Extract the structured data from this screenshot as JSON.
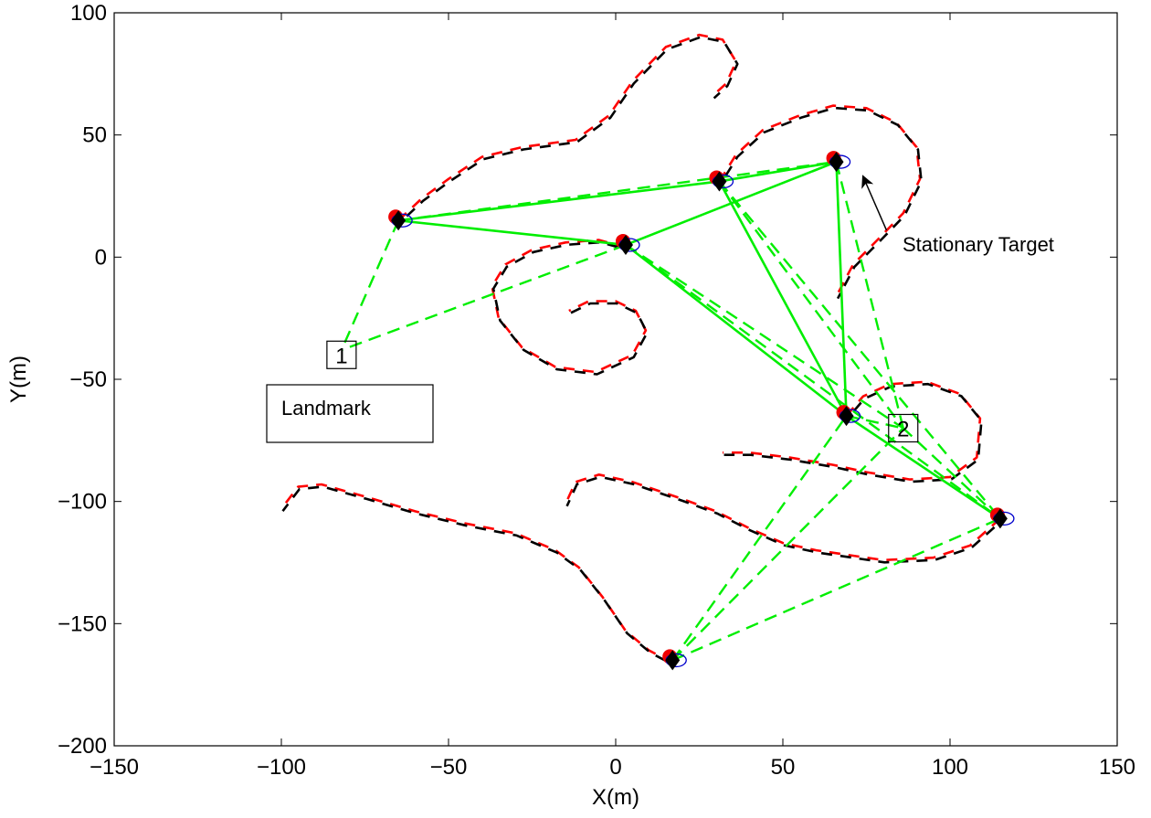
{
  "chart_data": {
    "type": "line",
    "title": "",
    "xlabel": "X(m)",
    "ylabel": "Y(m)",
    "xlim": [
      -150,
      150
    ],
    "ylim": [
      -200,
      100
    ],
    "xticks": [
      -150,
      -100,
      -50,
      0,
      50,
      100,
      150
    ],
    "yticks": [
      -200,
      -150,
      -100,
      -50,
      0,
      50,
      100
    ],
    "xtick_labels": [
      "−150",
      "−100",
      "−50",
      "0",
      "50",
      "100",
      "150"
    ],
    "ytick_labels": [
      "−200",
      "−150",
      "−100",
      "−50",
      "0",
      "50",
      "100"
    ],
    "grid": false,
    "colors": {
      "estimate_dash": "#ff0000",
      "truth_dash": "#000000",
      "link": "#00ee00",
      "uncertainty": "#0000cc"
    },
    "trajectories": [
      {
        "points": [
          [
            -65,
            15
          ],
          [
            -58,
            24
          ],
          [
            -50,
            32
          ],
          [
            -40,
            41
          ],
          [
            -28,
            45
          ],
          [
            -12,
            48
          ],
          [
            -2,
            58
          ],
          [
            5,
            72
          ],
          [
            15,
            86
          ],
          [
            25,
            91
          ],
          [
            32,
            89
          ],
          [
            36,
            80
          ],
          [
            33,
            71
          ],
          [
            29,
            66
          ]
        ]
      },
      {
        "points": [
          [
            3,
            4
          ],
          [
            -5,
            7
          ],
          [
            -15,
            6
          ],
          [
            -25,
            3
          ],
          [
            -33,
            -3
          ],
          [
            -37,
            -12
          ],
          [
            -35,
            -25
          ],
          [
            -28,
            -37
          ],
          [
            -18,
            -45
          ],
          [
            -6,
            -47
          ],
          [
            5,
            -40
          ],
          [
            9,
            -30
          ],
          [
            6,
            -22
          ],
          [
            0,
            -18
          ],
          [
            -8,
            -18
          ],
          [
            -14,
            -22
          ]
        ]
      },
      {
        "points": [
          [
            31,
            31
          ],
          [
            36,
            42
          ],
          [
            44,
            52
          ],
          [
            55,
            58
          ],
          [
            65,
            62
          ],
          [
            75,
            61
          ],
          [
            84,
            55
          ],
          [
            90,
            45
          ],
          [
            91,
            32
          ],
          [
            86,
            18
          ],
          [
            79,
            8
          ],
          [
            71,
            -3
          ],
          [
            66,
            -16
          ]
        ]
      },
      {
        "points": [
          [
            69,
            -65
          ],
          [
            74,
            -57
          ],
          [
            82,
            -52
          ],
          [
            93,
            -51
          ],
          [
            103,
            -56
          ],
          [
            109,
            -66
          ],
          [
            108,
            -82
          ],
          [
            100,
            -90
          ],
          [
            88,
            -91
          ],
          [
            75,
            -88
          ],
          [
            65,
            -85
          ],
          [
            52,
            -82
          ],
          [
            40,
            -80
          ],
          [
            32,
            -80
          ]
        ]
      },
      {
        "points": [
          [
            115,
            -107
          ],
          [
            106,
            -118
          ],
          [
            95,
            -123
          ],
          [
            80,
            -124
          ],
          [
            60,
            -120
          ],
          [
            50,
            -117
          ],
          [
            40,
            -111
          ],
          [
            30,
            -104
          ],
          [
            20,
            -99
          ],
          [
            5,
            -92
          ],
          [
            -5,
            -89
          ],
          [
            -12,
            -92
          ],
          [
            -15,
            -101
          ]
        ]
      },
      {
        "points": [
          [
            17,
            -166
          ],
          [
            10,
            -161
          ],
          [
            3,
            -153
          ],
          [
            -4,
            -139
          ],
          [
            -11,
            -127
          ],
          [
            -18,
            -120
          ],
          [
            -30,
            -113
          ],
          [
            -45,
            -109
          ],
          [
            -60,
            -104
          ],
          [
            -75,
            -98
          ],
          [
            -88,
            -93
          ],
          [
            -95,
            -94
          ],
          [
            -100,
            -103
          ]
        ]
      }
    ],
    "robots": [
      {
        "x": -65,
        "y": 15
      },
      {
        "x": 3,
        "y": 5
      },
      {
        "x": 31,
        "y": 31
      },
      {
        "x": 66,
        "y": 39
      },
      {
        "x": 69,
        "y": -65
      },
      {
        "x": 115,
        "y": -107
      },
      {
        "x": 17,
        "y": -165
      }
    ],
    "solid_links": [
      [
        0,
        2
      ],
      [
        0,
        1
      ],
      [
        2,
        3
      ],
      [
        1,
        3
      ],
      [
        2,
        4
      ],
      [
        3,
        4
      ],
      [
        1,
        4
      ],
      [
        4,
        5
      ]
    ],
    "dashed_links": [
      {
        "from": 0,
        "to": [
          -82,
          -38
        ]
      },
      {
        "from": 1,
        "to": [
          -82,
          -38
        ]
      },
      {
        "from": 0,
        "to": [
          66,
          39
        ]
      },
      {
        "from": 1,
        "to": [
          86,
          -70
        ]
      },
      {
        "from": 2,
        "to": [
          86,
          -70
        ]
      },
      {
        "from": 3,
        "to": [
          86,
          -70
        ]
      },
      {
        "from": 4,
        "to": [
          86,
          -70
        ]
      },
      {
        "from": 5,
        "to": [
          86,
          -70
        ]
      },
      {
        "from": 6,
        "to": [
          86,
          -70
        ]
      },
      {
        "from": 6,
        "to": [
          69,
          -65
        ]
      },
      {
        "from": 6,
        "to": [
          115,
          -107
        ]
      },
      {
        "from": 1,
        "to": [
          115,
          -107
        ]
      },
      {
        "from": 2,
        "to": [
          115,
          -107
        ]
      }
    ],
    "landmarks": [
      {
        "label": "1",
        "x": -82,
        "y": -40
      },
      {
        "label": "2",
        "x": 86,
        "y": -70
      }
    ],
    "annotations": {
      "landmark_legend": "Landmark",
      "stationary_target": "Stationary Target",
      "stationary_target_point": [
        74,
        33
      ],
      "stationary_target_tail": [
        81,
        11
      ]
    }
  }
}
